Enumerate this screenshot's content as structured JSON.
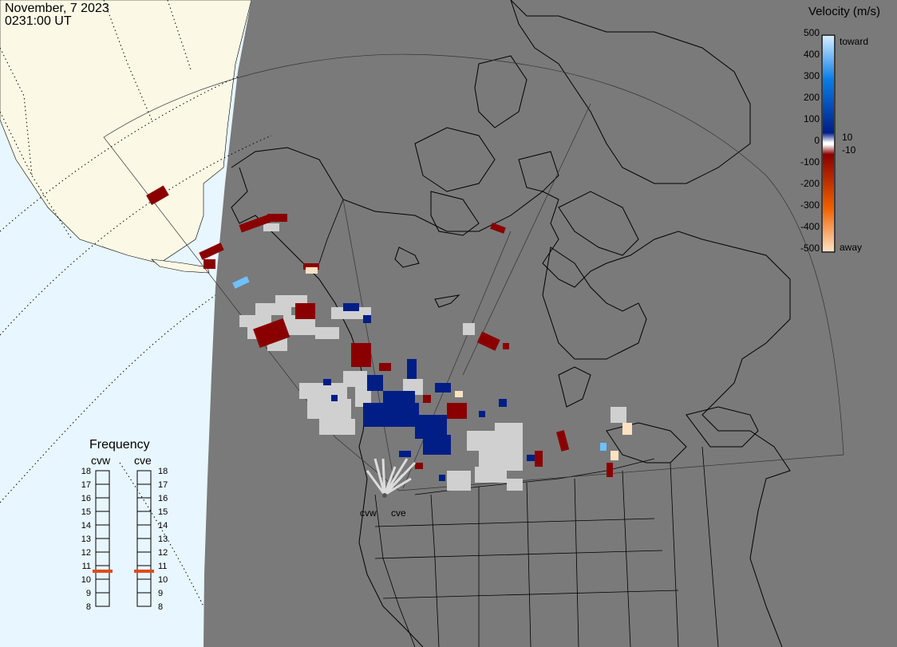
{
  "header": {
    "date": "November, 7 2023",
    "time": "0231:00 UT"
  },
  "legend": {
    "title": "Velocity (m/s)",
    "ticks": [
      "500",
      "400",
      "300",
      "200",
      "100",
      "0",
      "-100",
      "-200",
      "-300",
      "-400",
      "-500"
    ],
    "minor_ticks": [
      "10",
      "-10"
    ],
    "toward_label": "toward",
    "away_label": "away",
    "colors": {
      "toward_high": "#d6eeff",
      "toward_mid": "#0a7ee6",
      "toward_low": "#001e86",
      "zero": "#ffffff",
      "away_low": "#8a0000",
      "away_mid": "#f06000",
      "away_high": "#fde2c2"
    }
  },
  "frequency": {
    "title": "Frequency",
    "columns": [
      "cvw",
      "cve"
    ],
    "scale": [
      "18",
      "17",
      "16",
      "15",
      "14",
      "13",
      "12",
      "11",
      "10",
      "9",
      "8"
    ],
    "cvw_mhz": 10.6,
    "cve_mhz": 10.6,
    "marker_color": "#e24a1a"
  },
  "stations": {
    "west": "cvw",
    "east": "cve"
  },
  "map_colors": {
    "ocean_day": "#e8f6ff",
    "land_day": "#fbf9e6",
    "night": "#7a7a7a",
    "ground_scatter": "#d0d0d0"
  }
}
